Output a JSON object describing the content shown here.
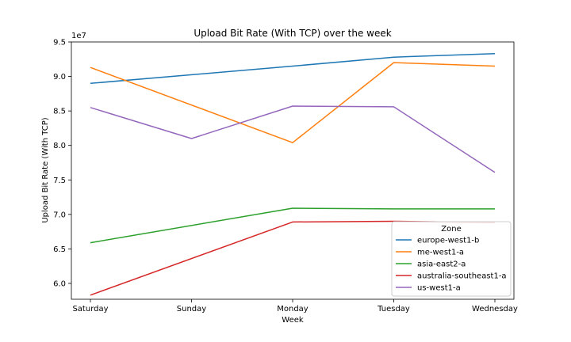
{
  "chart_data": {
    "type": "line",
    "title": "Upload Bit Rate (With TCP) over the week",
    "xlabel": "Week",
    "ylabel": "Upload Bit Rate (With TCP)",
    "offset_text": "1e7",
    "categories": [
      "Saturday",
      "Sunday",
      "Monday",
      "Tuesday",
      "Wednesday"
    ],
    "ylim": [
      5.77,
      9.5
    ],
    "yticks": [
      6.0,
      6.5,
      7.0,
      7.5,
      8.0,
      8.5,
      9.0,
      9.5
    ],
    "ytick_labels": [
      "6.0",
      "6.5",
      "7.0",
      "7.5",
      "8.0",
      "8.5",
      "9.0",
      "9.5"
    ],
    "y_scale_note": "values in units of 1e7",
    "grid": false,
    "legend": {
      "title": "Zone",
      "placement": "lower-right"
    },
    "series": [
      {
        "name": "europe-west1-b",
        "color": "#1f77b4",
        "values": [
          8.9,
          null,
          9.15,
          9.28,
          9.33
        ]
      },
      {
        "name": "me-west1-a",
        "color": "#ff7f0e",
        "values": [
          9.13,
          null,
          8.04,
          9.2,
          9.15
        ]
      },
      {
        "name": "asia-east2-a",
        "color": "#2ca02c",
        "values": [
          6.59,
          null,
          7.09,
          7.08,
          7.08
        ]
      },
      {
        "name": "australia-southeast1-a",
        "color": "#d62728",
        "values": [
          5.83,
          null,
          6.89,
          6.9,
          6.88
        ]
      },
      {
        "name": "us-west1-a",
        "color": "#9467bd",
        "values": [
          8.55,
          8.1,
          8.57,
          8.56,
          7.61
        ]
      }
    ]
  }
}
